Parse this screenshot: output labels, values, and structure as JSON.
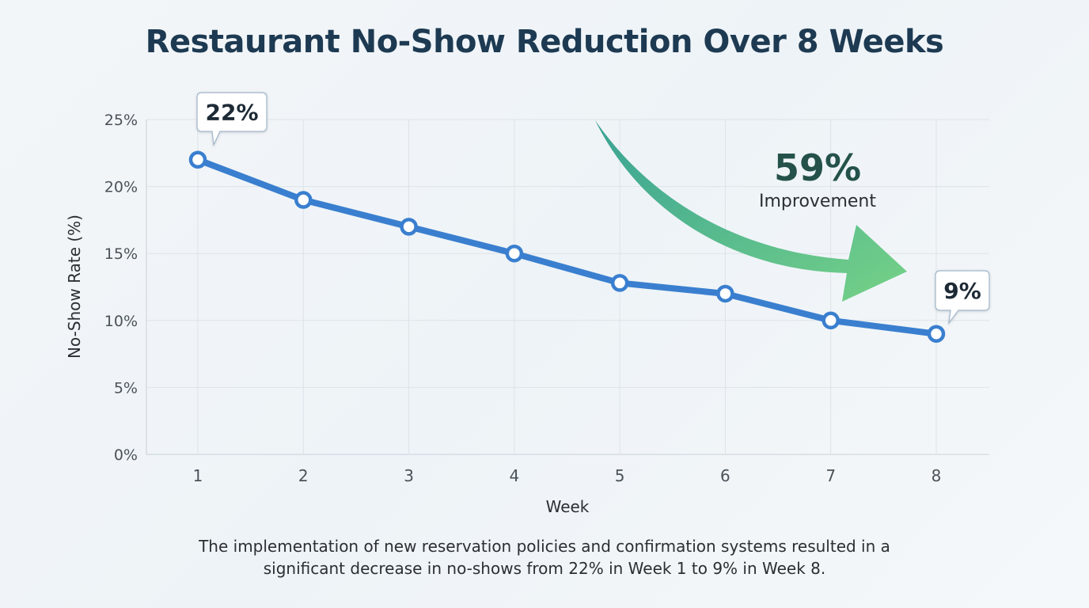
{
  "chart_data": {
    "type": "line",
    "title": "Restaurant No-Show Reduction Over 8 Weeks",
    "xlabel": "Week",
    "ylabel": "No-Show Rate (%)",
    "x": [
      1,
      2,
      3,
      4,
      5,
      6,
      7,
      8
    ],
    "series": [
      {
        "values": [
          22,
          19,
          17,
          15,
          12.8,
          12,
          10,
          9
        ]
      }
    ],
    "ylim": [
      0,
      25
    ],
    "xticks": [
      "1",
      "2",
      "3",
      "4",
      "5",
      "6",
      "7",
      "8"
    ],
    "yticks": [
      "0%",
      "5%",
      "10%",
      "15%",
      "20%",
      "25%"
    ],
    "grid": true,
    "callouts": {
      "start": "22%",
      "end": "9%"
    },
    "improvement": {
      "value": "59%",
      "label": "Improvement"
    },
    "caption": [
      "The implementation of new reservation policies and confirmation systems resulted in a",
      "significant decrease in no-shows from 22% in Week 1 to 9% in Week 8."
    ]
  },
  "colors": {
    "line": "#3a7fcf",
    "title": "#1d3a52",
    "grid": "#dde3e8",
    "arrow_start": "#2f9e8f",
    "arrow_end": "#6fd081",
    "improvement_text": "#24524a"
  }
}
